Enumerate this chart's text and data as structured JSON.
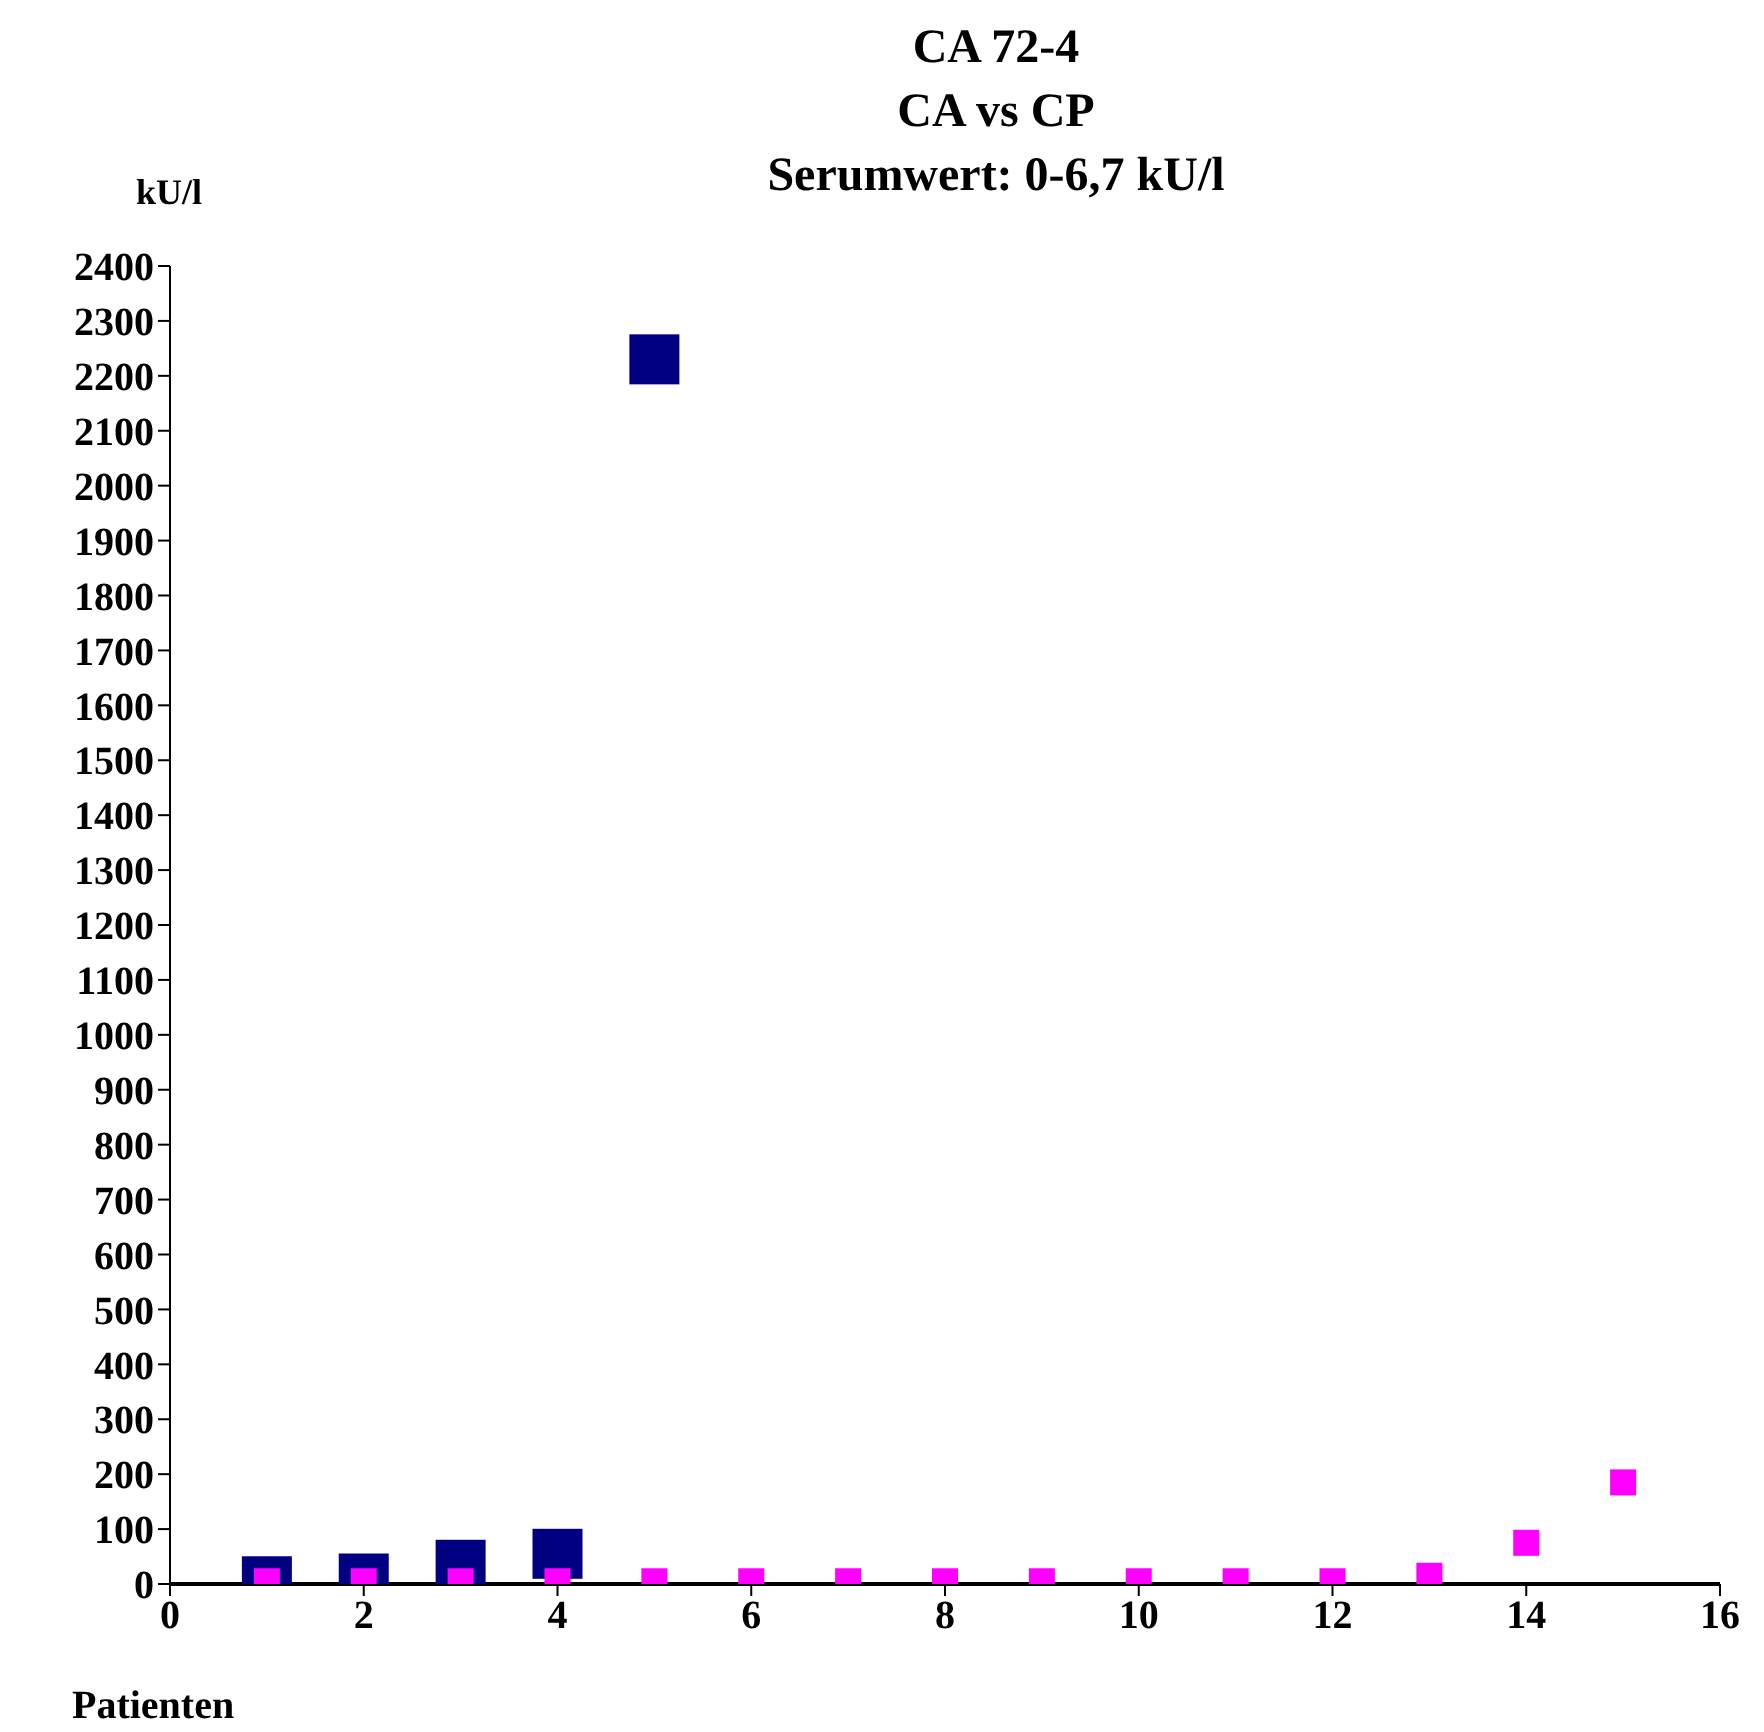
{
  "chart_data": {
    "type": "scatter",
    "title": "CA 72-4",
    "subtitle": "CA vs CP",
    "annotations": [
      "Serumwert: 0-6,7 kU/l"
    ],
    "ylabel": "kU/l",
    "xlabel": "Patienten",
    "marker": "square",
    "grid": false,
    "legend": false,
    "xlim": [
      0,
      16
    ],
    "xticks": [
      0,
      2,
      4,
      6,
      8,
      10,
      12,
      14,
      16
    ],
    "ylim": [
      0,
      2400
    ],
    "yticks": [
      0,
      100,
      200,
      300,
      400,
      500,
      600,
      700,
      800,
      900,
      1000,
      1100,
      1200,
      1300,
      1400,
      1500,
      1600,
      1700,
      1800,
      1900,
      2000,
      2100,
      2200,
      2300,
      2400
    ],
    "series": [
      {
        "color": "#000080",
        "x": [
          1,
          2,
          3,
          4,
          5
        ],
        "values": [
          5,
          10,
          35,
          55,
          2230
        ]
      },
      {
        "color": "#ff00ff",
        "x": [
          1,
          2,
          3,
          4,
          5,
          6,
          7,
          8,
          9,
          10,
          11,
          12,
          13,
          14,
          15
        ],
        "values": [
          5,
          5,
          5,
          5,
          5,
          5,
          5,
          5,
          5,
          5,
          5,
          5,
          15,
          75,
          185
        ]
      }
    ]
  }
}
